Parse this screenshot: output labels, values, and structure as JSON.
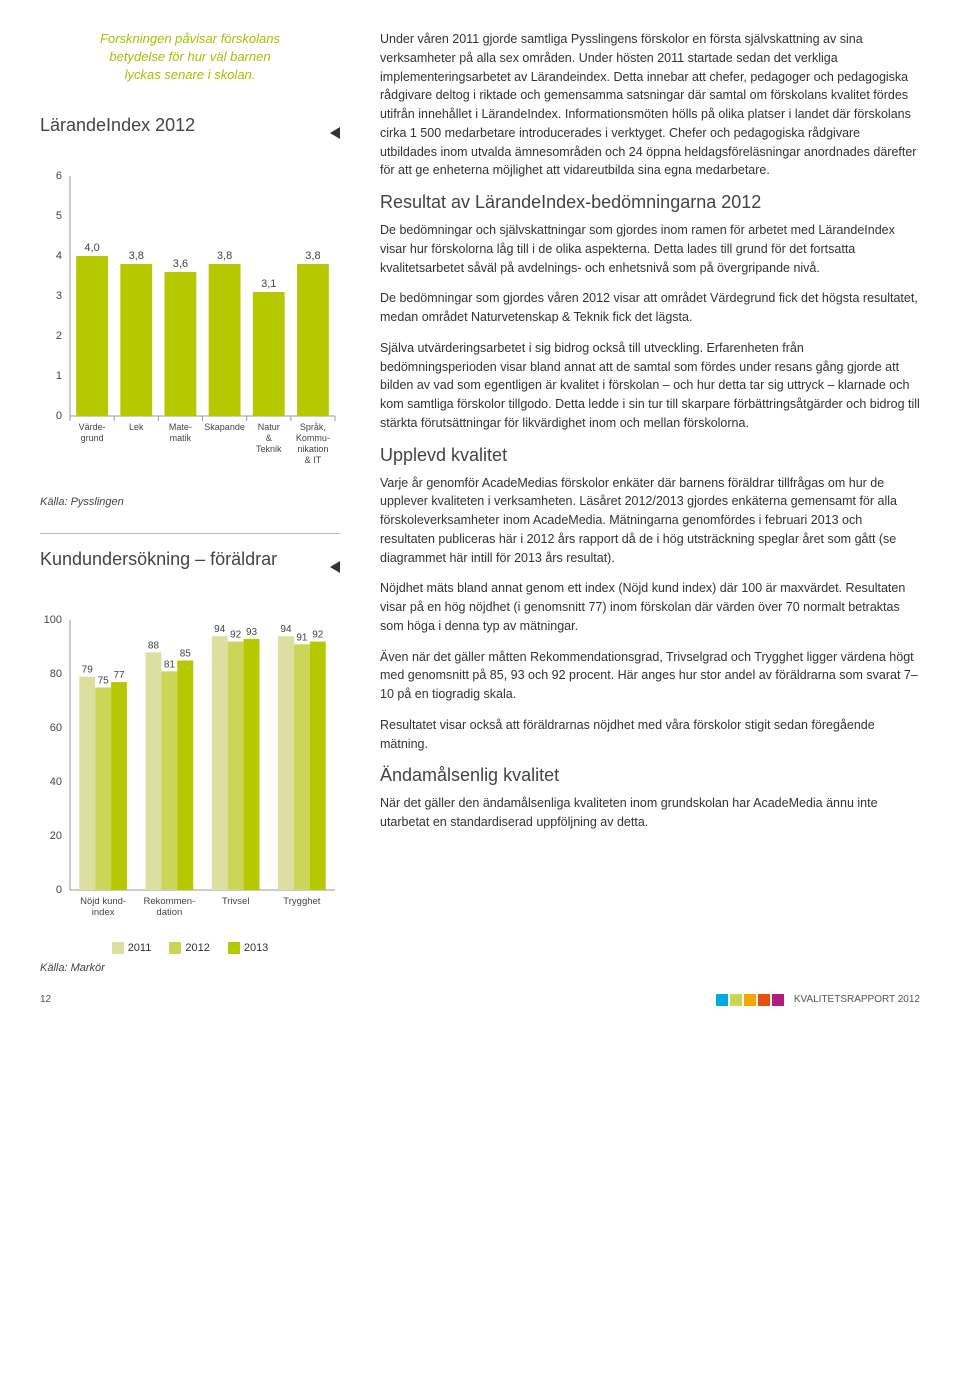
{
  "quote": "Forskningen påvisar förskolans betydelse för hur väl barnen lyckas senare i skolan.",
  "chart1": {
    "title": "LärandeIndex 2012",
    "ymax": 6,
    "ytick_step": 1,
    "categories": [
      "Värde-\ngrund",
      "Lek",
      "Mate-\nmatik",
      "Skapande",
      "Natur\n&\nTeknik",
      "Språk,\nKommu-\nnikation\n& IT"
    ],
    "values": [
      4.0,
      3.8,
      3.6,
      3.8,
      3.1,
      3.8
    ],
    "labels": [
      "4,0",
      "3,8",
      "3,6",
      "3,8",
      "3,1",
      "3,8"
    ],
    "bar_color": "#b6c800",
    "source": "Källa: Pysslingen"
  },
  "chart2": {
    "title": "Kundundersökning – föräldrar",
    "ymax": 100,
    "ytick_step": 20,
    "categories": [
      "Nöjd kund-\nindex",
      "Rekommen-\ndation",
      "Trivsel",
      "Trygghet"
    ],
    "series": [
      {
        "name": "2011",
        "color": "#dcdf9f",
        "values": [
          79,
          88,
          94,
          94
        ]
      },
      {
        "name": "2012",
        "color": "#cbd658",
        "values": [
          75,
          81,
          92,
          91
        ]
      },
      {
        "name": "2013",
        "color": "#b6c800",
        "values": [
          77,
          85,
          93,
          92
        ]
      }
    ],
    "source": "Källa: Markör"
  },
  "body": {
    "p1": "Under våren 2011 gjorde samtliga Pysslingens förskolor en första självskattning av sina verksamheter på alla sex områden. Under hösten 2011 startade sedan det verkliga implementeringsarbetet av Lärandeindex. Detta innebar att chefer, pedagoger och pedagogiska rådgivare deltog i riktade och gemensamma satsningar där samtal om förskolans kvalitet fördes utifrån innehållet i LärandeIndex. Informationsmöten hölls på olika platser i landet där förskolans cirka 1 500 medarbetare introducerades i verktyget. Chefer och pedagogiska rådgivare utbildades inom utvalda ämnesområden och 24 öppna heldagsföreläsningar anordnades därefter för att ge enheterna möjlighet att vidareutbilda sina egna medarbetare.",
    "h_resultat": "Resultat av LärandeIndex-bedömningarna 2012",
    "p2": "De bedömningar och självskattningar som gjordes inom ramen för arbetet med LärandeIndex visar hur förskolorna låg till i de olika aspekterna. Detta lades till grund för det fortsatta kvalitetsarbetet såväl på avdelnings- och enhetsnivå som på övergripande nivå.",
    "p3": "De bedömningar som gjordes våren 2012 visar att området Värdegrund fick det högsta resultatet, medan området Naturvetenskap & Teknik fick det lägsta.",
    "p4": "Själva utvärderingsarbetet i sig bidrog också till utveckling. Erfarenheten från bedömningsperioden visar bland annat att de samtal som fördes under resans gång gjorde att bilden av vad som egentligen är kvalitet i förskolan – och hur detta tar sig uttryck – klarnade och kom samtliga förskolor tillgodo. Detta ledde i sin tur till skarpare förbättringsåtgärder och bidrog till stärkta förutsättningar för likvärdighet inom och mellan förskolorna.",
    "h_upplevd": "Upplevd kvalitet",
    "p5": "Varje år genomför AcadeMedias förskolor enkäter där barnens föräldrar tillfrågas om hur de upplever kvaliteten i verksamheten. Läsåret 2012/2013 gjordes enkäterna gemensamt för alla förskoleverksamheter inom AcadeMedia. Mätningarna genomfördes i februari 2013 och resultaten publiceras här i 2012 års rapport då de i hög utsträckning speglar året som gått (se diagrammet här intill för 2013 års resultat).",
    "p6": "Nöjdhet mäts bland annat genom ett index (Nöjd kund index) där 100 är maxvärdet. Resultaten visar på en hög nöjdhet (i genomsnitt 77) inom förskolan där värden över 70 normalt betraktas som höga i denna typ av mätningar.",
    "p7": "Även när det gäller måtten Rekommendationsgrad, Trivselgrad och Trygghet ligger värdena högt med genomsnitt på 85, 93 och 92 procent. Här anges hur stor andel av föräldrarna som svarat 7–10 på en tiogradig skala.",
    "p8": "Resultatet visar också att föräldrarnas nöjdhet med våra förskolor stigit sedan föregående mätning.",
    "h_andamal": "Ändamålsenlig kvalitet",
    "p9": "När det gäller den ändamålsenliga kvaliteten inom grundskolan har AcadeMedia ännu inte utarbetat en standardiserad uppföljning av detta."
  },
  "footer": {
    "page": "12",
    "report": "KVALITETSRAPPORT 2012",
    "colors": [
      "#00a9e0",
      "#cbd658",
      "#f7a600",
      "#e84e0f",
      "#b31b7e"
    ]
  }
}
